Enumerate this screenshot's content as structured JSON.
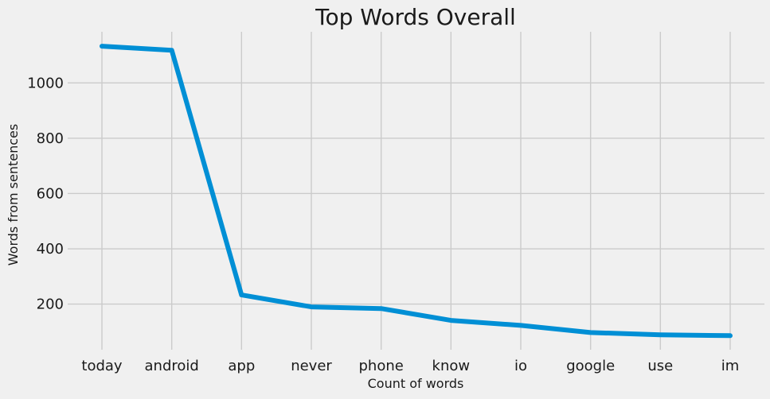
{
  "chart_data": {
    "type": "line",
    "title": "Top Words Overall",
    "xlabel": "Count of words",
    "ylabel": "Words from sentences",
    "categories": [
      "today",
      "android",
      "app",
      "never",
      "phone",
      "know",
      "io",
      "google",
      "use",
      "im"
    ],
    "series": [
      {
        "values": [
          1133,
          1118,
          233,
          190,
          184,
          141,
          123,
          97,
          89,
          86
        ]
      }
    ],
    "ylim": [
      35,
      1185
    ],
    "yticks": [
      200,
      400,
      600,
      800,
      1000
    ],
    "grid": true,
    "line_color": "#008fd5",
    "grid_color": "#cbcbcb",
    "background": "#f0f0f0"
  }
}
